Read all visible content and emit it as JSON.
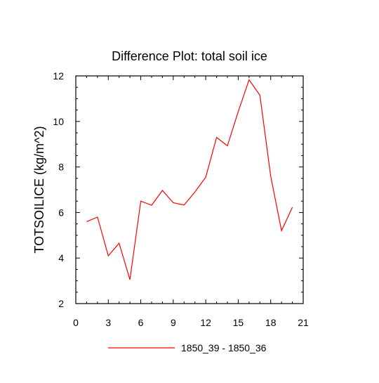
{
  "chart_data": {
    "type": "line",
    "title": "Difference Plot: total soil ice",
    "xlabel": "",
    "ylabel": "TOTSOILICE  (kg/m^2)",
    "xlim": [
      0,
      21
    ],
    "ylim": [
      2,
      12
    ],
    "x_ticks": [
      "0",
      "3",
      "6",
      "9",
      "12",
      "15",
      "18",
      "21"
    ],
    "y_ticks": [
      "2",
      "4",
      "6",
      "8",
      "10",
      "12"
    ],
    "grid": false,
    "legend": "bottom",
    "series": [
      {
        "name": "1850_39 - 1850_36",
        "color": "#ff0000",
        "x": [
          1,
          2,
          3,
          4,
          5,
          6,
          7,
          8,
          9,
          10,
          11,
          12,
          13,
          14,
          15,
          16,
          17,
          18,
          19,
          20
        ],
        "y": [
          5.6,
          5.8,
          4.1,
          4.65,
          3.05,
          6.5,
          6.32,
          6.97,
          6.43,
          6.33,
          6.9,
          7.55,
          9.3,
          8.93,
          10.43,
          11.83,
          11.15,
          7.6,
          5.2,
          6.23
        ]
      }
    ]
  }
}
